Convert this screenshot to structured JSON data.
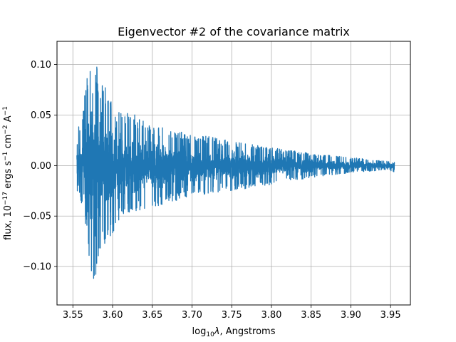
{
  "chart_data": {
    "type": "line",
    "title": "Eigenvector #2 of the covariance matrix",
    "xlabel": {
      "prefix": "log",
      "subscript": "10",
      "symbol": "λ",
      "suffix": ", Angstroms"
    },
    "ylabel": {
      "t1": "flux, 10",
      "s1": "−17",
      "t2": " ergs s",
      "s2": "−1",
      "t3": " cm",
      "s3": "−2",
      "t4": " A",
      "s4": "−1"
    },
    "xlim": [
      3.53,
      3.975
    ],
    "ylim": [
      -0.138,
      0.123
    ],
    "xticks": [
      3.55,
      3.6,
      3.65,
      3.7,
      3.75,
      3.8,
      3.85,
      3.9,
      3.95
    ],
    "xtick_labels": [
      "3.55",
      "3.60",
      "3.65",
      "3.70",
      "3.75",
      "3.80",
      "3.85",
      "3.90",
      "3.95"
    ],
    "yticks": [
      0.1,
      0.05,
      0.0,
      -0.05,
      -0.1
    ],
    "ytick_labels": [
      "0.10",
      "0.05",
      "0.00",
      "−0.05",
      "−0.10"
    ],
    "grid": true,
    "series": [
      {
        "x_start": 3.555,
        "x_end": 3.955,
        "envelope": [
          {
            "x": 3.555,
            "ymax": 0.046,
            "ymin": -0.028
          },
          {
            "x": 3.56,
            "ymax": 0.04,
            "ymin": -0.035
          },
          {
            "x": 3.565,
            "ymax": 0.07,
            "ymin": -0.052
          },
          {
            "x": 3.57,
            "ymax": 0.11,
            "ymin": -0.09
          },
          {
            "x": 3.575,
            "ymax": 0.111,
            "ymin": -0.125
          },
          {
            "x": 3.58,
            "ymax": 0.1,
            "ymin": -0.11
          },
          {
            "x": 3.585,
            "ymax": 0.085,
            "ymin": -0.085
          },
          {
            "x": 3.59,
            "ymax": 0.08,
            "ymin": -0.087
          },
          {
            "x": 3.6,
            "ymax": 0.06,
            "ymin": -0.075
          },
          {
            "x": 3.61,
            "ymax": 0.055,
            "ymin": -0.05
          },
          {
            "x": 3.625,
            "ymax": 0.052,
            "ymin": -0.047
          },
          {
            "x": 3.65,
            "ymax": 0.04,
            "ymin": -0.042
          },
          {
            "x": 3.7,
            "ymax": 0.032,
            "ymin": -0.03
          },
          {
            "x": 3.75,
            "ymax": 0.024,
            "ymin": -0.025
          },
          {
            "x": 3.8,
            "ymax": 0.018,
            "ymin": -0.019
          },
          {
            "x": 3.85,
            "ymax": 0.012,
            "ymin": -0.012
          },
          {
            "x": 3.9,
            "ymax": 0.008,
            "ymin": -0.007
          },
          {
            "x": 3.95,
            "ymax": 0.004,
            "ymin": -0.004
          },
          {
            "x": 3.955,
            "ymax": 0.003,
            "ymin": -0.016
          }
        ]
      }
    ]
  },
  "colors": {
    "line": "#1f77b4",
    "grid": "#b0b0b0",
    "axes": "#000000",
    "background": "#ffffff"
  }
}
